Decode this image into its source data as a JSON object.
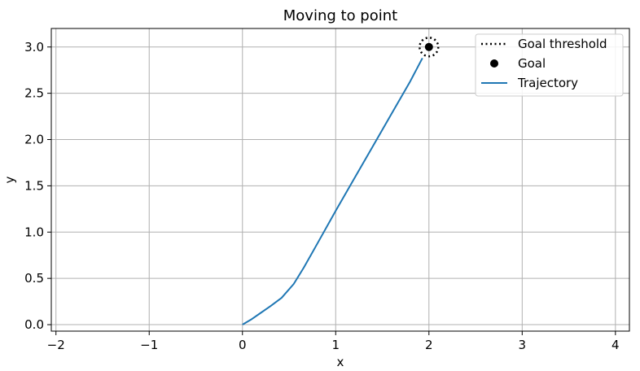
{
  "chart_data": {
    "type": "line",
    "title": "Moving to point",
    "xlabel": "x",
    "ylabel": "y",
    "xlim": [
      -2.05,
      4.15
    ],
    "ylim": [
      -0.07,
      3.2
    ],
    "grid": true,
    "legend_position": "top-right",
    "x_ticks": [
      -2,
      -1,
      0,
      1,
      2,
      3,
      4
    ],
    "x_tick_labels": [
      "−2",
      "−1",
      "0",
      "1",
      "2",
      "3",
      "4"
    ],
    "y_ticks": [
      0.0,
      0.5,
      1.0,
      1.5,
      2.0,
      2.5,
      3.0
    ],
    "y_tick_labels": [
      "0.0",
      "0.5",
      "1.0",
      "1.5",
      "2.0",
      "2.5",
      "3.0"
    ],
    "series": [
      {
        "name": "Goal threshold",
        "kind": "circle",
        "center": [
          2,
          3
        ],
        "radius": 0.1,
        "color": "#000000",
        "linestyle": "dotted"
      },
      {
        "name": "Goal",
        "kind": "point",
        "x": [
          2
        ],
        "y": [
          3
        ],
        "color": "#000000"
      },
      {
        "name": "Trajectory",
        "kind": "line",
        "color": "#1f77b4",
        "x": [
          0,
          0.1,
          0.2,
          0.3,
          0.42,
          0.55,
          0.66,
          0.8,
          1.0,
          1.2,
          1.4,
          1.6,
          1.8,
          1.93
        ],
        "y": [
          0,
          0.06,
          0.13,
          0.2,
          0.29,
          0.44,
          0.62,
          0.87,
          1.23,
          1.58,
          1.93,
          2.28,
          2.63,
          2.88
        ]
      }
    ],
    "legend": [
      "Goal threshold",
      "Goal",
      "Trajectory"
    ]
  }
}
